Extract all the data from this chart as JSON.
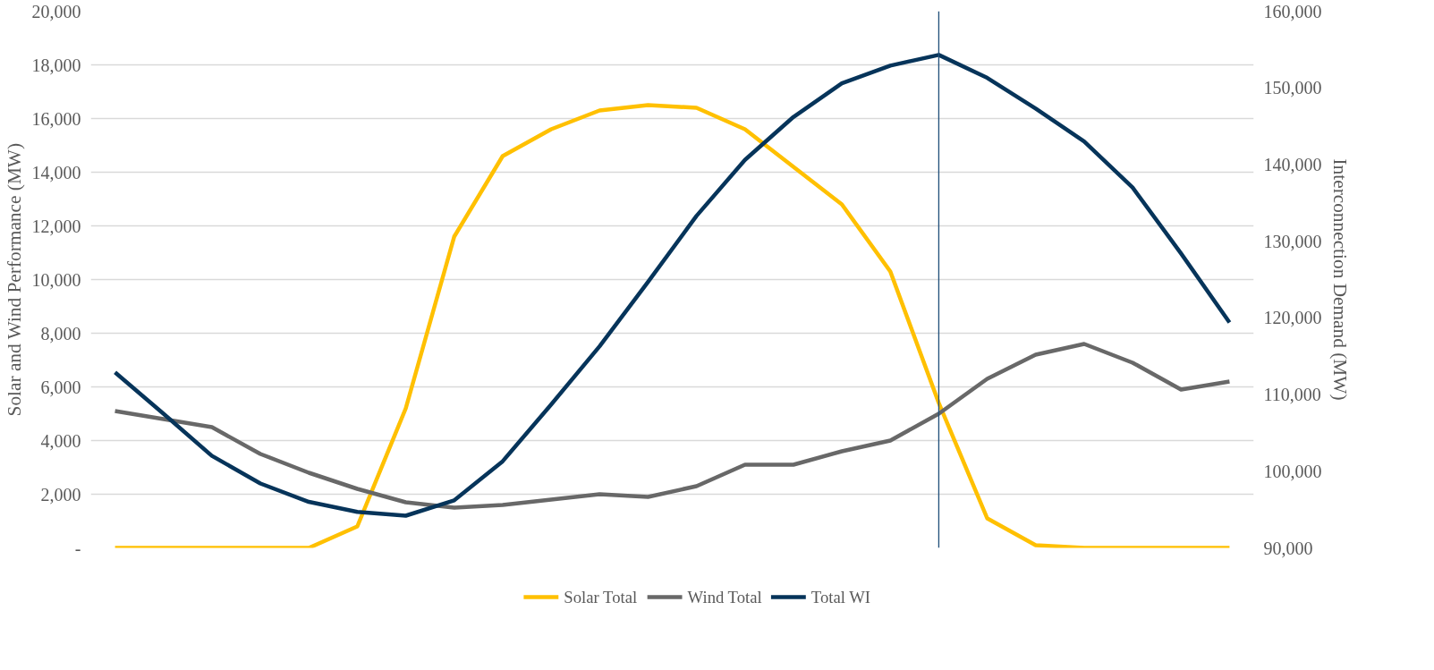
{
  "chart_data": {
    "type": "line",
    "categories": [
      null,
      null,
      null,
      null,
      null,
      null,
      null,
      null,
      null,
      null,
      null,
      null,
      null,
      null,
      null,
      null,
      null,
      null,
      null,
      null,
      null,
      null,
      null,
      null
    ],
    "ylabel": "Solar and Wind Performance (MW)",
    "y2label": "Interconnection Demand (MW)",
    "ylim": [
      0,
      20000
    ],
    "yticks": [
      {
        "value": 0,
        "label": "-"
      },
      {
        "value": 2000,
        "label": "2,000"
      },
      {
        "value": 4000,
        "label": "4,000"
      },
      {
        "value": 6000,
        "label": "6,000"
      },
      {
        "value": 8000,
        "label": "8,000"
      },
      {
        "value": 10000,
        "label": "10,000"
      },
      {
        "value": 12000,
        "label": "12,000"
      },
      {
        "value": 14000,
        "label": "14,000"
      },
      {
        "value": 16000,
        "label": "16,000"
      },
      {
        "value": 18000,
        "label": "18,000"
      },
      {
        "value": 20000,
        "label": "20,000"
      }
    ],
    "y2lim": [
      90000,
      160000
    ],
    "y2ticks": [
      {
        "value": 90000,
        "label": "90,000"
      },
      {
        "value": 100000,
        "label": "100,000"
      },
      {
        "value": 110000,
        "label": "110,000"
      },
      {
        "value": 120000,
        "label": "120,000"
      },
      {
        "value": 130000,
        "label": "130,000"
      },
      {
        "value": 140000,
        "label": "140,000"
      },
      {
        "value": 150000,
        "label": "150,000"
      },
      {
        "value": 160000,
        "label": "160,000"
      }
    ],
    "grid": "y",
    "legend": "bottom",
    "line_style": "solid",
    "series": [
      {
        "name": "Solar Total",
        "color": "#ffc000",
        "values": [
          0,
          0,
          0,
          0,
          0,
          800,
          5200,
          11600,
          14600,
          15600,
          16300,
          16500,
          16400,
          15600,
          14200,
          12800,
          10300,
          5400,
          1100,
          100,
          0,
          0,
          0,
          0
        ]
      },
      {
        "name": "Wind Total",
        "color": "#686868",
        "values": [
          5100,
          4800,
          4500,
          3500,
          2800,
          2200,
          1700,
          1500,
          1600,
          1800,
          2000,
          1900,
          2300,
          3100,
          3100,
          3600,
          4000,
          5000,
          6300,
          7200,
          7600,
          6900,
          5900,
          6200
        ]
      },
      {
        "name": "Total WI",
        "color": "#06345a",
        "axis": "y2",
        "values": [
          112900,
          107500,
          102000,
          98400,
          96000,
          94700,
          94200,
          96200,
          101300,
          108700,
          116300,
          124700,
          133300,
          140600,
          146200,
          150600,
          152900,
          154300,
          151300,
          147300,
          143000,
          137000,
          128400,
          119400
        ]
      }
    ]
  }
}
